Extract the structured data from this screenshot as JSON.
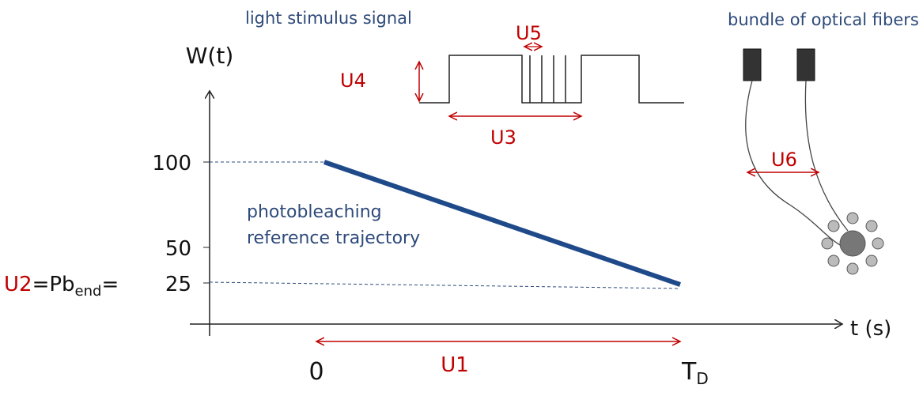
{
  "axes": {
    "y_label": "W(t)",
    "x_label": "t (s)",
    "y_ticks": [
      "100",
      "50",
      "25"
    ],
    "x_ticks": [
      "0",
      "T",
      "D"
    ]
  },
  "u2": {
    "name": "U2",
    "prefix": "=Pb",
    "subscript": "end",
    "suffix": "="
  },
  "annotations": {
    "u1": "U1",
    "u3": "U3",
    "u4": "U4",
    "u5": "U5",
    "u6": "U6",
    "signal": "light stimulus signal",
    "fibers": "bundle of optical fibers",
    "trajectory_line1": "photobleaching",
    "trajectory_line2": "reference trajectory"
  }
}
